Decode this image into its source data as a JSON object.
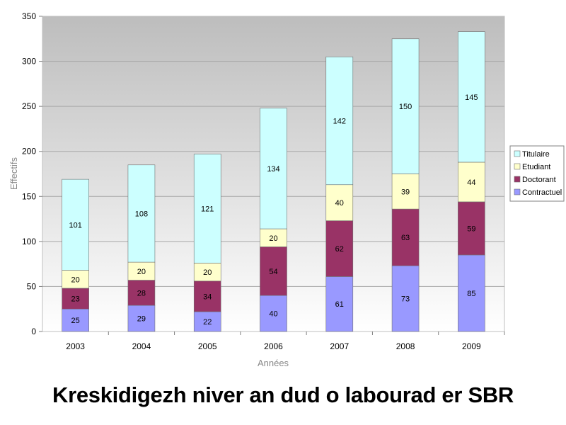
{
  "chart_data": {
    "type": "bar",
    "stacked": true,
    "categories": [
      "2003",
      "2004",
      "2005",
      "2006",
      "2007",
      "2008",
      "2009"
    ],
    "series": [
      {
        "name": "Contractuel",
        "color": "#9999ff",
        "values": [
          25,
          29,
          22,
          40,
          61,
          73,
          85
        ]
      },
      {
        "name": "Doctorant",
        "color": "#993366",
        "values": [
          23,
          28,
          34,
          54,
          62,
          63,
          59
        ]
      },
      {
        "name": "Etudiant",
        "color": "#ffffcc",
        "values": [
          20,
          20,
          20,
          20,
          40,
          39,
          44
        ]
      },
      {
        "name": "Titulaire",
        "color": "#ccffff",
        "values": [
          101,
          108,
          121,
          134,
          142,
          150,
          145
        ]
      }
    ],
    "xlabel": "Années",
    "ylabel": "Effectifs",
    "ylim": [
      0,
      350
    ],
    "yticks": [
      0,
      50,
      100,
      150,
      200,
      250,
      300,
      350
    ],
    "grid": true,
    "legend": {
      "position": "right",
      "order": [
        "Titulaire",
        "Etudiant",
        "Doctorant",
        "Contractuel"
      ]
    }
  },
  "page": {
    "title": "Kreskidigezh niver an dud o labourad er SBR"
  }
}
